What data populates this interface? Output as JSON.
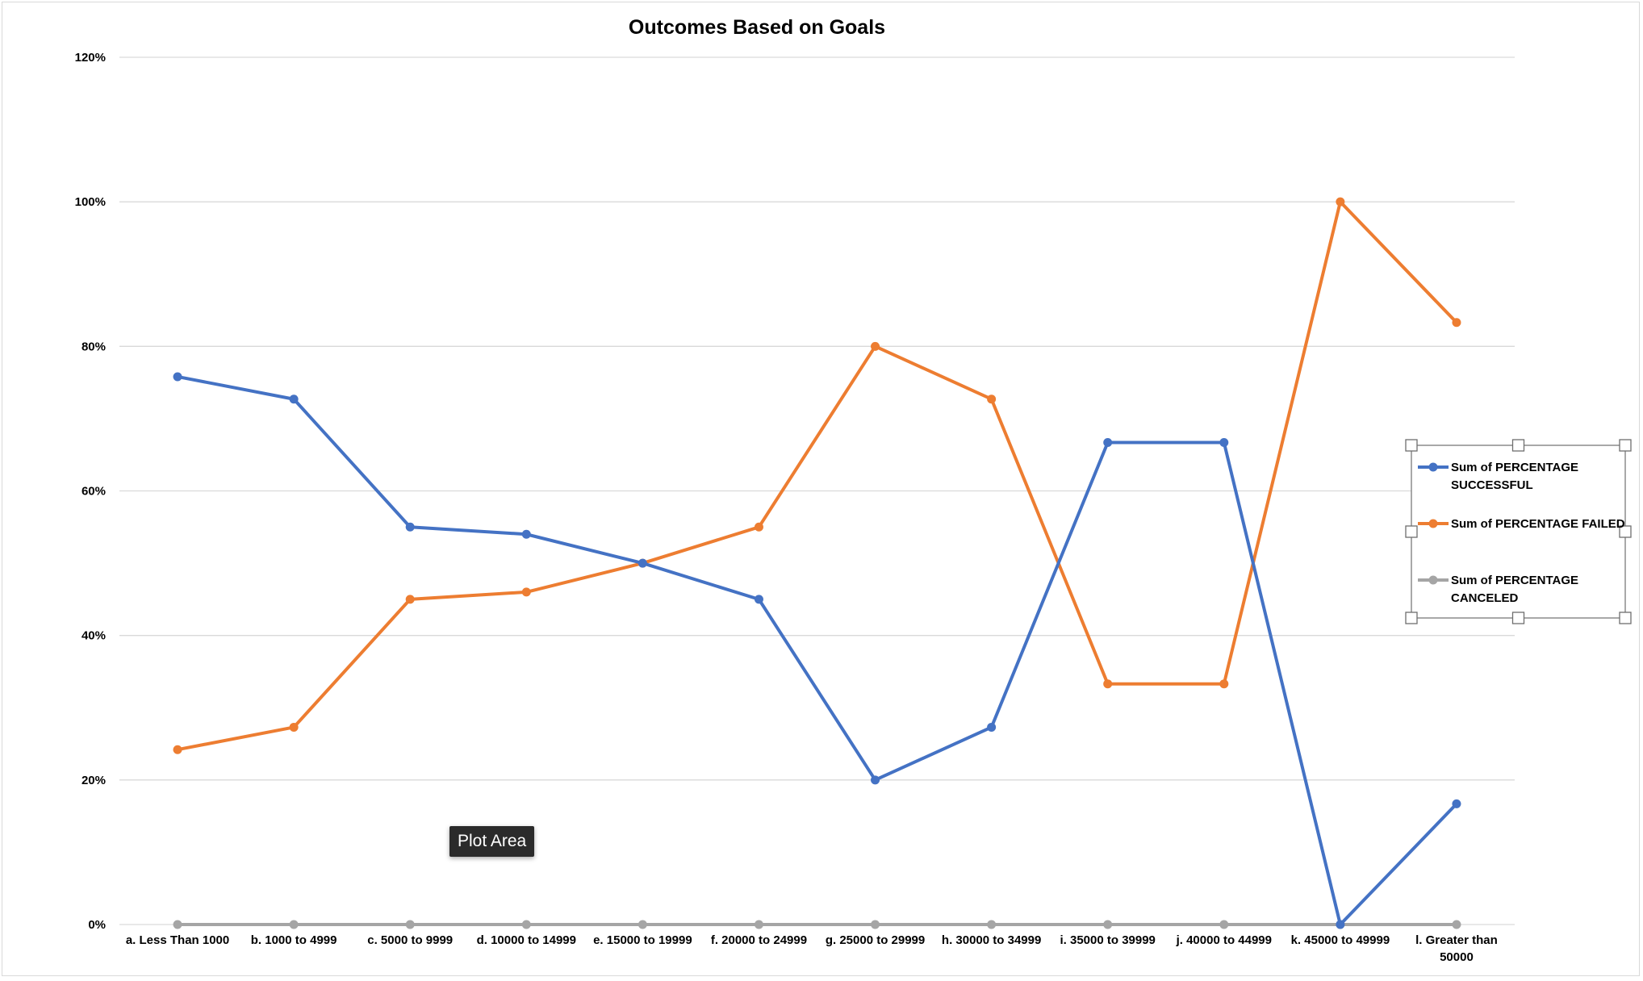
{
  "chart_data": {
    "type": "line",
    "title": "Outcomes Based on Goals",
    "categories": [
      [
        "a. Less Than 1000"
      ],
      [
        "b. 1000 to 4999"
      ],
      [
        "c. 5000 to 9999"
      ],
      [
        "d. 10000 to 14999"
      ],
      [
        "e. 15000 to 19999"
      ],
      [
        "f. 20000 to 24999"
      ],
      [
        "g. 25000 to 29999"
      ],
      [
        "h. 30000 to 34999"
      ],
      [
        "i. 35000 to 39999"
      ],
      [
        "j. 40000 to 44999"
      ],
      [
        "k. 45000 to 49999"
      ],
      [
        "l. Greater than",
        "50000"
      ]
    ],
    "yticks": [
      "0%",
      "20%",
      "40%",
      "60%",
      "80%",
      "100%",
      "120%"
    ],
    "ylim": [
      0,
      1.2
    ],
    "grid": true,
    "legend_position": "right",
    "series": [
      {
        "name": [
          "Sum of PERCENTAGE",
          "SUCCESSFUL"
        ],
        "color": "#4472c4",
        "values": [
          0.758,
          0.727,
          0.55,
          0.54,
          0.5,
          0.45,
          0.2,
          0.273,
          0.667,
          0.667,
          0.0,
          0.167
        ]
      },
      {
        "name": [
          "Sum of PERCENTAGE FAILED"
        ],
        "color": "#ed7d31",
        "values": [
          0.242,
          0.273,
          0.45,
          0.46,
          0.5,
          0.55,
          0.8,
          0.727,
          0.333,
          0.333,
          1.0,
          0.833
        ]
      },
      {
        "name": [
          "Sum of PERCENTAGE",
          "CANCELED"
        ],
        "color": "#a5a5a5",
        "values": [
          0,
          0,
          0,
          0,
          0,
          0,
          0,
          0,
          0,
          0,
          0,
          0
        ]
      }
    ]
  },
  "tooltip": {
    "label": "Plot Area"
  }
}
